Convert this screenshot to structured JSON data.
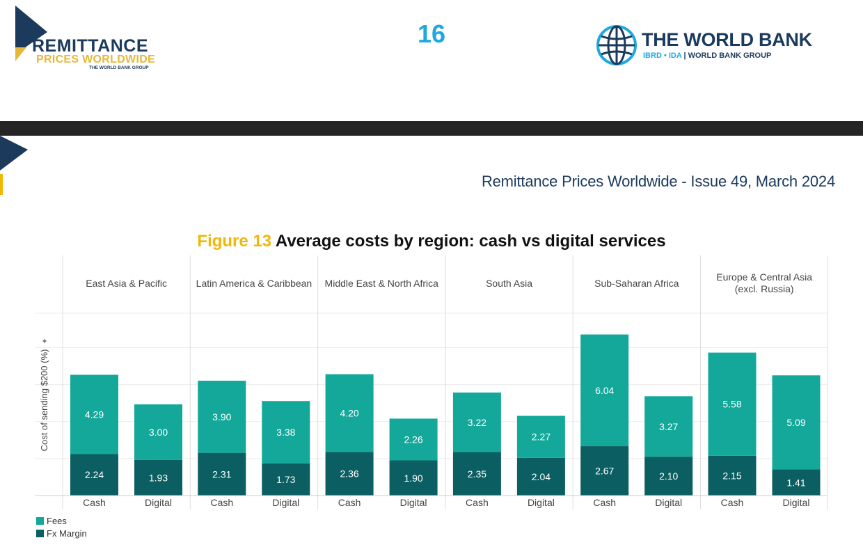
{
  "header": {
    "left_logo": {
      "line1": "REMITTANCE",
      "line2": "PRICES WORLDWIDE",
      "line3": "THE WORLD BANK GROUP"
    },
    "page_number": "16",
    "right_logo": {
      "title": "THE WORLD BANK",
      "sub_ibrd": "IBRD • IDA",
      "sub_sep": " | ",
      "sub_group": "WORLD BANK GROUP"
    }
  },
  "issue_line": "Remittance Prices Worldwide - Issue 49, March 2024",
  "figure": {
    "number": "Figure 13",
    "title": "Average costs by region: cash vs digital services"
  },
  "colors": {
    "fees": "#13a89a",
    "fx_margin": "#0b5e61",
    "navy": "#1b3a5c",
    "gold": "#f2b705"
  },
  "chart_data": {
    "type": "bar",
    "stacked": true,
    "ylabel": "Cost of sending $200 (%)",
    "ylim": [
      0,
      8
    ],
    "grid": true,
    "legend": "bottom-left",
    "panels": [
      {
        "label": "East Asia & Pacific",
        "categories": [
          "Cash",
          "Digital"
        ],
        "fx_margin": [
          2.24,
          1.93
        ],
        "fees": [
          4.29,
          3.0
        ]
      },
      {
        "label": "Latin America & Caribbean",
        "categories": [
          "Cash",
          "Digital"
        ],
        "fx_margin": [
          2.31,
          1.73
        ],
        "fees": [
          3.9,
          3.38
        ]
      },
      {
        "label": "Middle East & North Africa",
        "categories": [
          "Cash",
          "Digital"
        ],
        "fx_margin": [
          2.36,
          1.9
        ],
        "fees": [
          4.2,
          2.26
        ]
      },
      {
        "label": "South Asia",
        "categories": [
          "Cash",
          "Digital"
        ],
        "fx_margin": [
          2.35,
          2.04
        ],
        "fees": [
          3.22,
          2.27
        ]
      },
      {
        "label": "Sub-Saharan Africa",
        "categories": [
          "Cash",
          "Digital"
        ],
        "fx_margin": [
          2.67,
          2.1
        ],
        "fees": [
          6.04,
          3.27
        ]
      },
      {
        "label": "Europe & Central Asia (excl. Russia)",
        "label_lines": [
          "Europe & Central Asia",
          "(excl. Russia)"
        ],
        "categories": [
          "Cash",
          "Digital"
        ],
        "fx_margin": [
          2.15,
          1.41
        ],
        "fees": [
          5.58,
          5.09
        ]
      }
    ],
    "series": [
      {
        "name": "Fees",
        "key": "fees"
      },
      {
        "name": "Fx Margin",
        "key": "fx_margin"
      }
    ],
    "value_labels": {
      "fees": [
        [
          "4.29",
          "3.00"
        ],
        [
          "3.90",
          "3.38"
        ],
        [
          "4.20",
          "2.26"
        ],
        [
          "3.22",
          "2.27"
        ],
        [
          "6.04",
          "3.27"
        ],
        [
          "5.58",
          "5.09"
        ]
      ],
      "fx_margin": [
        [
          "2.24",
          "1.93"
        ],
        [
          "2.31",
          "1.73"
        ],
        [
          "2.36",
          "1.90"
        ],
        [
          "2.35",
          "2.04"
        ],
        [
          "2.67",
          "2.10"
        ],
        [
          "2.15",
          "1.41"
        ]
      ]
    }
  }
}
